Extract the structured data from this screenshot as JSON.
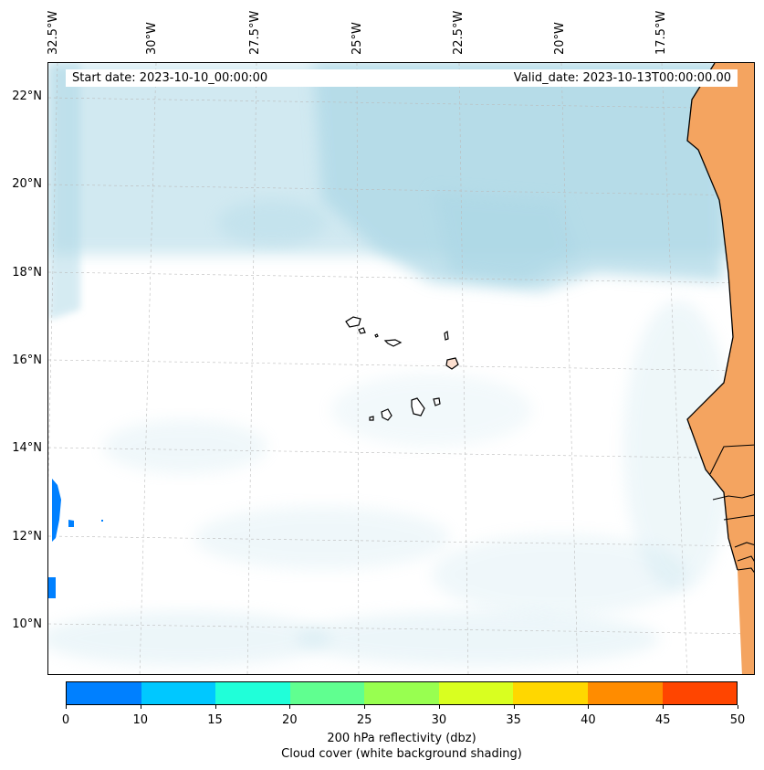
{
  "header": {
    "start_date": "Start date: 2023-10-10_00:00:00",
    "valid_date": "Valid_date: 2023-10-13T00:00:00.00"
  },
  "map": {
    "lon_labels": [
      "32.5°W",
      "30°W",
      "27.5°W",
      "25°W",
      "22.5°W",
      "20°W",
      "17.5°W"
    ],
    "lat_labels": [
      "22°N",
      "20°N",
      "18°N",
      "16°N",
      "14°N",
      "12°N",
      "10°N"
    ],
    "colors": {
      "cloud": "#add8e6",
      "land": "#f4a460",
      "reflectivity_0_10": "#0080ff"
    }
  },
  "colorbar": {
    "colors": [
      "#0080ff",
      "#00c8ff",
      "#20ffd9",
      "#60ff90",
      "#98ff50",
      "#d9ff20",
      "#ffd700",
      "#ff8c00",
      "#ff4500"
    ],
    "ticks": [
      "0",
      "10",
      "15",
      "20",
      "25",
      "30",
      "35",
      "40",
      "45",
      "50"
    ],
    "label": "200 hPa reflectivity (dbz)",
    "sublabel": "Cloud cover (white background shading)"
  }
}
